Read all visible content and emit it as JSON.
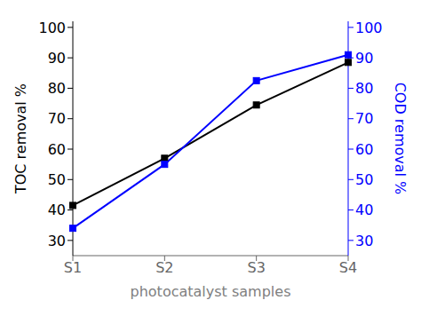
{
  "chart_data": {
    "type": "line",
    "categories": [
      "S1",
      "S2",
      "S3",
      "S4"
    ],
    "x_label": "photocatalyst samples",
    "y_label": "TOC removal %",
    "y2_label": "COD removal %",
    "series": [
      {
        "color": "#000000",
        "marker": "square",
        "values": [
          41.5,
          57.0,
          74.5,
          88.5
        ]
      },
      {
        "color": "#0000ff",
        "marker": "square",
        "axis": "y2",
        "values": [
          34.0,
          55.0,
          82.5,
          91.0
        ]
      }
    ],
    "ylim": [
      25,
      102
    ],
    "yticks": [
      30,
      40,
      50,
      60,
      70,
      80,
      90,
      100
    ],
    "y2lim": [
      25,
      102
    ],
    "y2ticks": [
      30,
      40,
      50,
      60,
      70,
      80,
      90,
      100
    ],
    "grid": false
  }
}
